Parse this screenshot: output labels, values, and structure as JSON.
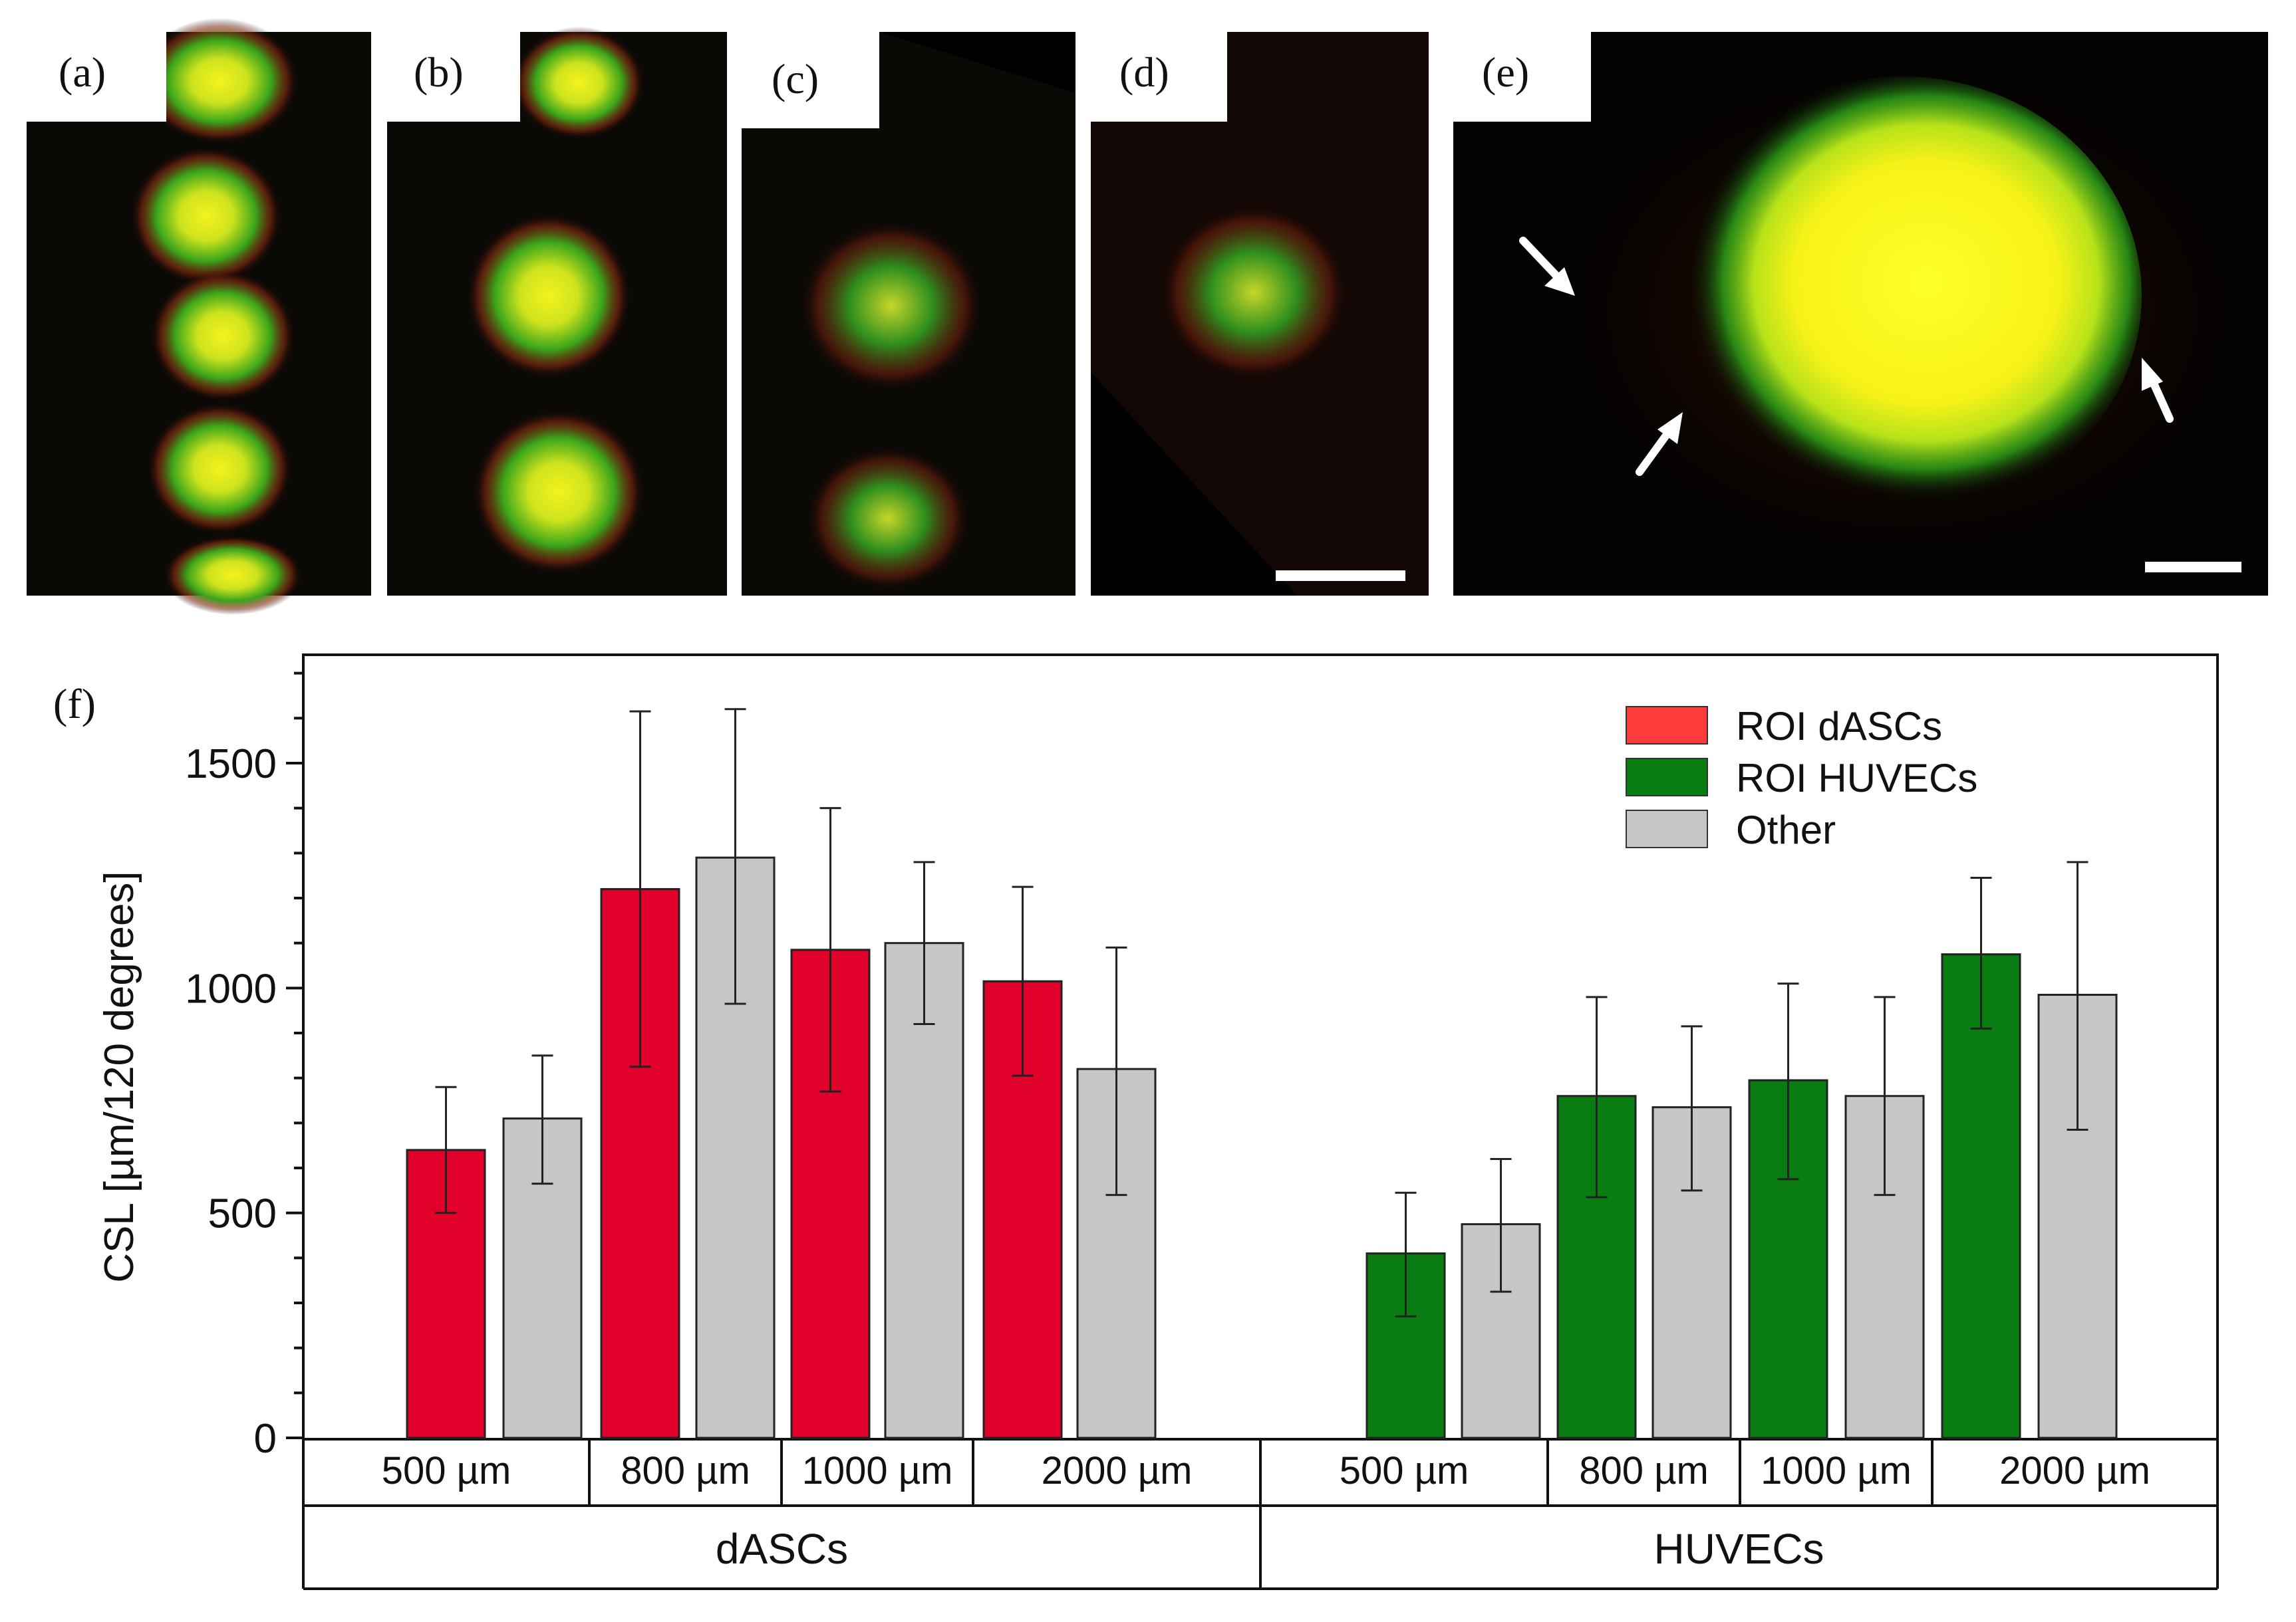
{
  "micrographs": [
    {
      "label": "(a)"
    },
    {
      "label": "(b)"
    },
    {
      "label": "(c)"
    },
    {
      "label": "(d)"
    },
    {
      "label": "(e)"
    }
  ],
  "chart_panel_label": "(f)",
  "colors": {
    "roi_dascs": "#e0002a",
    "roi_huvecs": "#0a7d12",
    "other": "#c6c6c6",
    "legend_roi_dascs": "#ff3b3b",
    "legend_roi_huvecs": "#0a7d12",
    "legend_other": "#c6c6c6"
  },
  "chart_data": {
    "type": "bar",
    "ylabel": "CSL [µm/120 degrees]",
    "ylim": [
      0,
      1750
    ],
    "yticks": [
      0,
      500,
      1000,
      1500
    ],
    "legend": [
      "ROI dASCs",
      "ROI HUVECs",
      "Other"
    ],
    "legend_position": "top-right",
    "groups": [
      {
        "name": "dASCs",
        "categories": [
          {
            "label": "500 µm",
            "bars": [
              {
                "series": "ROI dASCs",
                "value": 640,
                "low": 500,
                "high": 780
              },
              {
                "series": "Other",
                "value": 710,
                "low": 565,
                "high": 850
              }
            ]
          },
          {
            "label": "800 µm",
            "bars": [
              {
                "series": "ROI dASCs",
                "value": 1220,
                "low": 825,
                "high": 1615
              },
              {
                "series": "Other",
                "value": 1290,
                "low": 965,
                "high": 1620
              }
            ]
          },
          {
            "label": "1000 µm",
            "bars": [
              {
                "series": "ROI dASCs",
                "value": 1085,
                "low": 770,
                "high": 1400
              },
              {
                "series": "Other",
                "value": 1100,
                "low": 920,
                "high": 1280
              }
            ]
          },
          {
            "label": "2000 µm",
            "bars": [
              {
                "series": "ROI dASCs",
                "value": 1015,
                "low": 805,
                "high": 1225
              },
              {
                "series": "Other",
                "value": 820,
                "low": 540,
                "high": 1090
              }
            ]
          }
        ]
      },
      {
        "name": "HUVECs",
        "categories": [
          {
            "label": "500 µm",
            "bars": [
              {
                "series": "ROI HUVECs",
                "value": 410,
                "low": 270,
                "high": 545
              },
              {
                "series": "Other",
                "value": 475,
                "low": 325,
                "high": 620
              }
            ]
          },
          {
            "label": "800 µm",
            "bars": [
              {
                "series": "ROI HUVECs",
                "value": 760,
                "low": 535,
                "high": 980
              },
              {
                "series": "Other",
                "value": 735,
                "low": 550,
                "high": 915
              }
            ]
          },
          {
            "label": "1000 µm",
            "bars": [
              {
                "series": "ROI HUVECs",
                "value": 795,
                "low": 575,
                "high": 1010
              },
              {
                "series": "Other",
                "value": 760,
                "low": 540,
                "high": 980
              }
            ]
          },
          {
            "label": "2000 µm",
            "bars": [
              {
                "series": "ROI HUVECs",
                "value": 1075,
                "low": 910,
                "high": 1245
              },
              {
                "series": "Other",
                "value": 985,
                "low": 685,
                "high": 1280
              }
            ]
          }
        ]
      }
    ]
  }
}
